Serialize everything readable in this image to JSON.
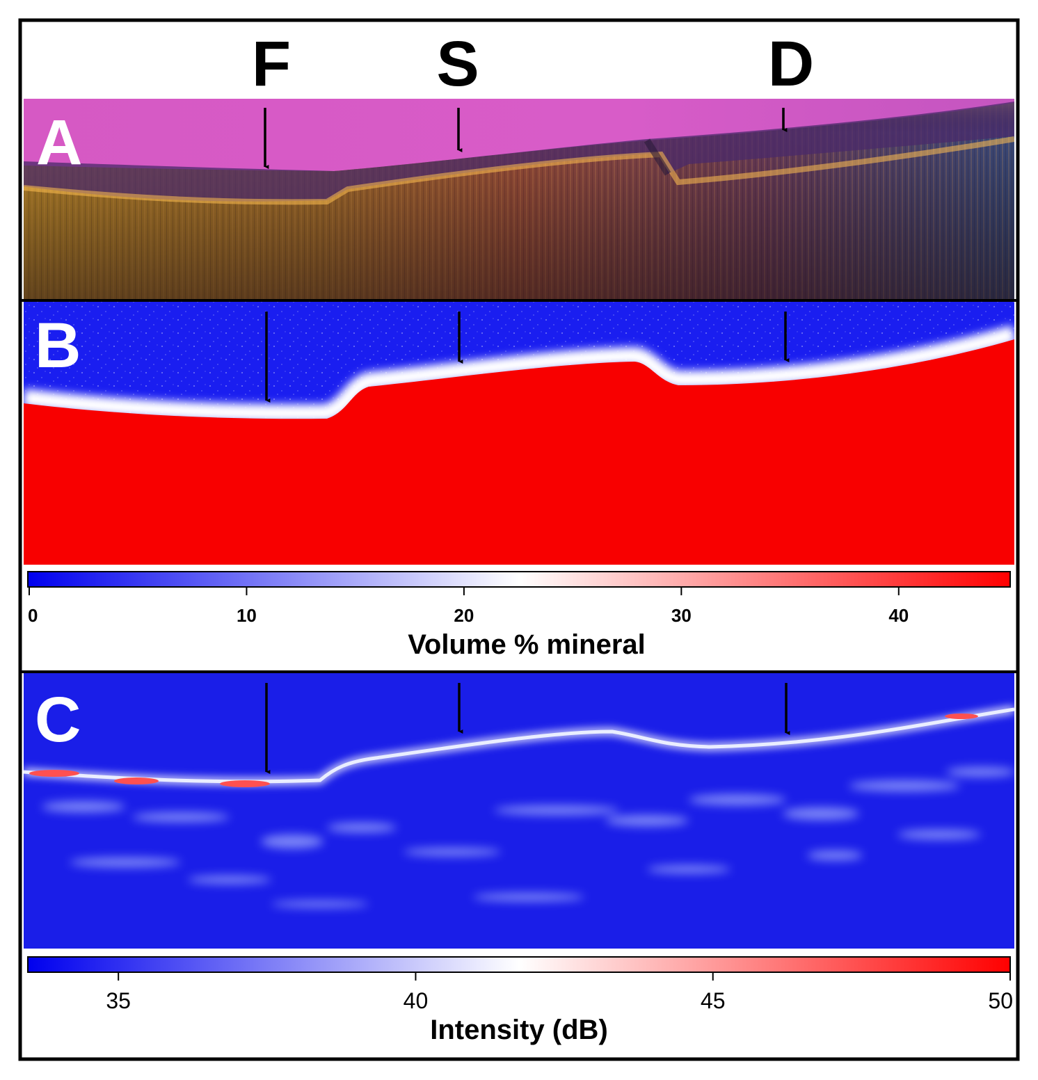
{
  "site_labels": [
    "F",
    "S",
    "D"
  ],
  "panels": {
    "a": {
      "letter": "A"
    },
    "b": {
      "letter": "B"
    },
    "c": {
      "letter": "C"
    }
  },
  "colorbar_mineral": {
    "ticks": [
      "0",
      "10",
      "20",
      "30",
      "40"
    ],
    "tick_values": [
      0,
      10,
      20,
      30,
      40
    ],
    "range": [
      0,
      45
    ],
    "label": "Volume % mineral",
    "colors": [
      "#0000ee",
      "#ffffff",
      "#ff0000"
    ]
  },
  "colorbar_intensity": {
    "ticks": [
      "35",
      "40",
      "45",
      "50"
    ],
    "tick_values": [
      35,
      40,
      45,
      50
    ],
    "range": [
      33.5,
      50
    ],
    "label": "Intensity (dB)",
    "colors": [
      "#0000ee",
      "#ffffff",
      "#ff0000"
    ]
  }
}
